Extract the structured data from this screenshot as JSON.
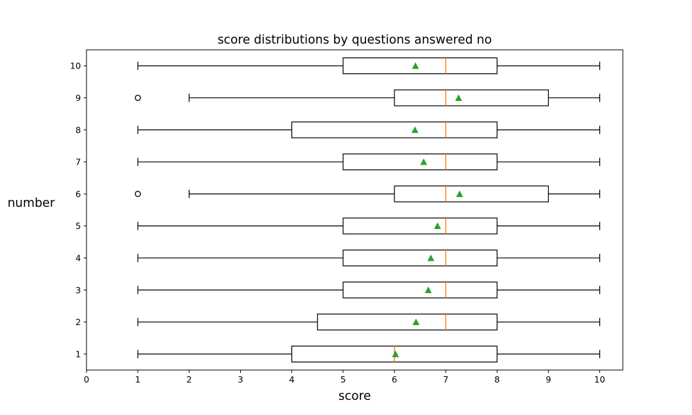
{
  "chart_data": {
    "type": "boxplot",
    "orientation": "horizontal",
    "title": "score distributions by questions answered no",
    "xlabel": "score",
    "ylabel": "number",
    "xlim": [
      0,
      10.45
    ],
    "ylim": [
      0.5,
      10.5
    ],
    "x_ticks": [
      0,
      1,
      2,
      3,
      4,
      5,
      6,
      7,
      8,
      9,
      10
    ],
    "y_ticks": [
      1,
      2,
      3,
      4,
      5,
      6,
      7,
      8,
      9,
      10
    ],
    "grid": false,
    "colors": {
      "box": "#000000",
      "median": "#ff7f0e",
      "mean": "#2ca02c",
      "flier": "#000000"
    },
    "boxes": [
      {
        "category": "1",
        "whisker_low": 1,
        "q1": 4,
        "median": 6,
        "q3": 8,
        "whisker_high": 10,
        "mean": 6.02,
        "fliers": []
      },
      {
        "category": "2",
        "whisker_low": 1,
        "q1": 4.5,
        "median": 7,
        "q3": 8,
        "whisker_high": 10,
        "mean": 6.42,
        "fliers": []
      },
      {
        "category": "3",
        "whisker_low": 1,
        "q1": 5,
        "median": 7,
        "q3": 8,
        "whisker_high": 10,
        "mean": 6.66,
        "fliers": []
      },
      {
        "category": "4",
        "whisker_low": 1,
        "q1": 5,
        "median": 7,
        "q3": 8,
        "whisker_high": 10,
        "mean": 6.71,
        "fliers": []
      },
      {
        "category": "5",
        "whisker_low": 1,
        "q1": 5,
        "median": 7,
        "q3": 8,
        "whisker_high": 10,
        "mean": 6.84,
        "fliers": []
      },
      {
        "category": "6",
        "whisker_low": 2,
        "q1": 6,
        "median": 7,
        "q3": 9,
        "whisker_high": 10,
        "mean": 7.27,
        "fliers": [
          1
        ]
      },
      {
        "category": "7",
        "whisker_low": 1,
        "q1": 5,
        "median": 7,
        "q3": 8,
        "whisker_high": 10,
        "mean": 6.57,
        "fliers": []
      },
      {
        "category": "8",
        "whisker_low": 1,
        "q1": 4,
        "median": 7,
        "q3": 8,
        "whisker_high": 10,
        "mean": 6.4,
        "fliers": []
      },
      {
        "category": "9",
        "whisker_low": 2,
        "q1": 6,
        "median": 7,
        "q3": 9,
        "whisker_high": 10,
        "mean": 7.25,
        "fliers": [
          1
        ]
      },
      {
        "category": "10",
        "whisker_low": 1,
        "q1": 5,
        "median": 7,
        "q3": 8,
        "whisker_high": 10,
        "mean": 6.41,
        "fliers": []
      }
    ]
  }
}
